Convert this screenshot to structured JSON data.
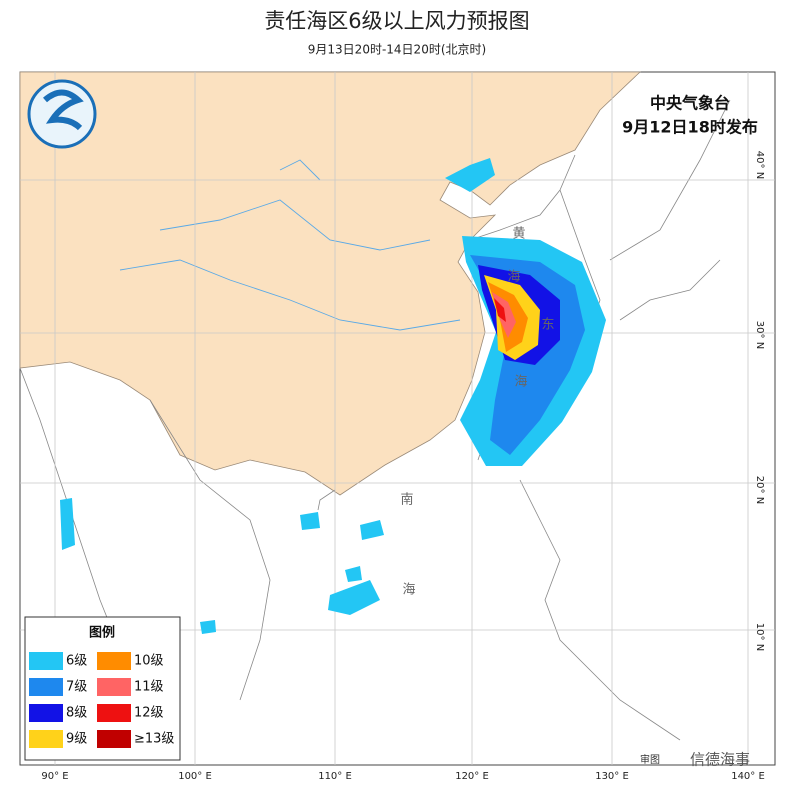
{
  "header": {
    "title": "责任海区6级以上风力预报图",
    "subtitle": "9月13日20时-14日20时(北京时)"
  },
  "issuer": {
    "name": "中央气象台",
    "time": "9月12日18时发布"
  },
  "map": {
    "lon_labels": [
      "90° E",
      "100° E",
      "110° E",
      "120° E",
      "130° E",
      "140° E"
    ],
    "lat_labels": [
      "40° N",
      "30° N",
      "20° N",
      "10° N"
    ],
    "sea_labels": [
      "黄",
      "海",
      "东",
      "海",
      "南",
      "海"
    ]
  },
  "legend": {
    "title": "图例",
    "items": [
      {
        "name": "6级",
        "color": "#23c6f4"
      },
      {
        "name": "10级",
        "color": "#ff8c00"
      },
      {
        "name": "7级",
        "color": "#1e88ee"
      },
      {
        "name": "11级",
        "color": "#ff6464"
      },
      {
        "name": "8级",
        "color": "#1212e6"
      },
      {
        "name": "12级",
        "color": "#ee1111"
      },
      {
        "name": "9级",
        "color": "#ffd21a"
      },
      {
        "name": "≥13级",
        "color": "#c00000"
      }
    ]
  },
  "footer": {
    "map_number": "审图",
    "watermark": "信德海事"
  }
}
